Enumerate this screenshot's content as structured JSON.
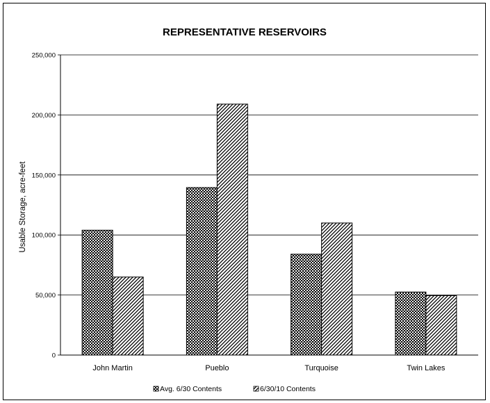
{
  "chart_data": {
    "type": "bar",
    "title": "REPRESENTATIVE RESERVOIRS",
    "xlabel": "",
    "ylabel": "Usable Storage, acre-feet",
    "ylim": [
      0,
      250000
    ],
    "yticks": [
      0,
      50000,
      100000,
      150000,
      200000,
      250000
    ],
    "ytick_labels": [
      "0",
      "50,000",
      "100,000",
      "150,000",
      "200,000",
      "250,000"
    ],
    "categories": [
      "John Martin",
      "Pueblo",
      "Turquoise",
      "Twin Lakes"
    ],
    "series": [
      {
        "name": "Avg. 6/30 Contents",
        "values": [
          104000,
          139500,
          84000,
          52500
        ],
        "pattern": "checker"
      },
      {
        "name": "6/30/10 Contents",
        "values": [
          65000,
          209000,
          110000,
          49500
        ],
        "pattern": "diagonal"
      }
    ],
    "grid": true,
    "legend_position": "bottom"
  }
}
